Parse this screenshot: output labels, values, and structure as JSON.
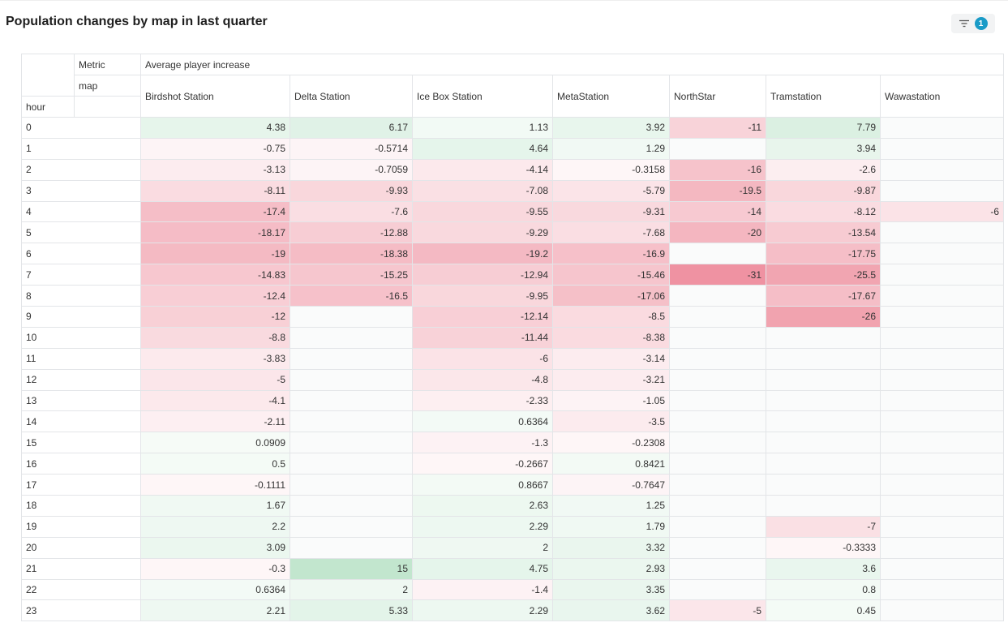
{
  "title": "Population changes by map in last quarter",
  "filter": {
    "count": "1",
    "icon": "filter-lines-icon"
  },
  "colors": {
    "positive": "#45b36b",
    "negative": "#e5536b"
  },
  "chart_data": {
    "type": "table",
    "title": "Population changes by map in last quarter",
    "column_labels": {
      "metric": "Metric",
      "map": "map",
      "row": "hour"
    },
    "metric": "Average player increase",
    "columns": [
      "Birdshot Station",
      "Delta Station",
      "Ice Box Station",
      "MetaStation",
      "NorthStar",
      "Tramstation",
      "Wawastation"
    ],
    "rows": [
      {
        "hour": "0",
        "values": [
          "4.38",
          "6.17",
          "1.13",
          "3.92",
          "-11",
          "7.79",
          ""
        ]
      },
      {
        "hour": "1",
        "values": [
          "-0.75",
          "-0.5714",
          "4.64",
          "1.29",
          "",
          "3.94",
          ""
        ]
      },
      {
        "hour": "2",
        "values": [
          "-3.13",
          "-0.7059",
          "-4.14",
          "-0.3158",
          "-16",
          "-2.6",
          ""
        ]
      },
      {
        "hour": "3",
        "values": [
          "-8.11",
          "-9.93",
          "-7.08",
          "-5.79",
          "-19.5",
          "-9.87",
          ""
        ]
      },
      {
        "hour": "4",
        "values": [
          "-17.4",
          "-7.6",
          "-9.55",
          "-9.31",
          "-14",
          "-8.12",
          "-6"
        ]
      },
      {
        "hour": "5",
        "values": [
          "-18.17",
          "-12.88",
          "-9.29",
          "-7.68",
          "-20",
          "-13.54",
          ""
        ]
      },
      {
        "hour": "6",
        "values": [
          "-19",
          "-18.38",
          "-19.2",
          "-16.9",
          "",
          "-17.75",
          ""
        ]
      },
      {
        "hour": "7",
        "values": [
          "-14.83",
          "-15.25",
          "-12.94",
          "-15.46",
          "-31",
          "-25.5",
          ""
        ]
      },
      {
        "hour": "8",
        "values": [
          "-12.4",
          "-16.5",
          "-9.95",
          "-17.06",
          "",
          "-17.67",
          ""
        ]
      },
      {
        "hour": "9",
        "values": [
          "-12",
          "",
          "-12.14",
          "-8.5",
          "",
          "-26",
          ""
        ]
      },
      {
        "hour": "10",
        "values": [
          "-8.8",
          "",
          "-11.44",
          "-8.38",
          "",
          "",
          ""
        ]
      },
      {
        "hour": "11",
        "values": [
          "-3.83",
          "",
          "-6",
          "-3.14",
          "",
          "",
          ""
        ]
      },
      {
        "hour": "12",
        "values": [
          "-5",
          "",
          "-4.8",
          "-3.21",
          "",
          "",
          ""
        ]
      },
      {
        "hour": "13",
        "values": [
          "-4.1",
          "",
          "-2.33",
          "-1.05",
          "",
          "",
          ""
        ]
      },
      {
        "hour": "14",
        "values": [
          "-2.11",
          "",
          "0.6364",
          "-3.5",
          "",
          "",
          ""
        ]
      },
      {
        "hour": "15",
        "values": [
          "0.0909",
          "",
          "-1.3",
          "-0.2308",
          "",
          "",
          ""
        ]
      },
      {
        "hour": "16",
        "values": [
          "0.5",
          "",
          "-0.2667",
          "0.8421",
          "",
          "",
          ""
        ]
      },
      {
        "hour": "17",
        "values": [
          "-0.1111",
          "",
          "0.8667",
          "-0.7647",
          "",
          "",
          ""
        ]
      },
      {
        "hour": "18",
        "values": [
          "1.67",
          "",
          "2.63",
          "1.25",
          "",
          "",
          ""
        ]
      },
      {
        "hour": "19",
        "values": [
          "2.2",
          "",
          "2.29",
          "1.79",
          "",
          "-7",
          ""
        ]
      },
      {
        "hour": "20",
        "values": [
          "3.09",
          "",
          "2",
          "3.32",
          "",
          "-0.3333",
          ""
        ]
      },
      {
        "hour": "21",
        "values": [
          "-0.3",
          "15",
          "4.75",
          "2.93",
          "",
          "3.6",
          ""
        ]
      },
      {
        "hour": "22",
        "values": [
          "0.6364",
          "2",
          "-1.4",
          "3.35",
          "",
          "0.8",
          ""
        ]
      },
      {
        "hour": "23",
        "values": [
          "2.21",
          "5.33",
          "2.29",
          "3.62",
          "-5",
          "0.45",
          ""
        ]
      }
    ]
  }
}
